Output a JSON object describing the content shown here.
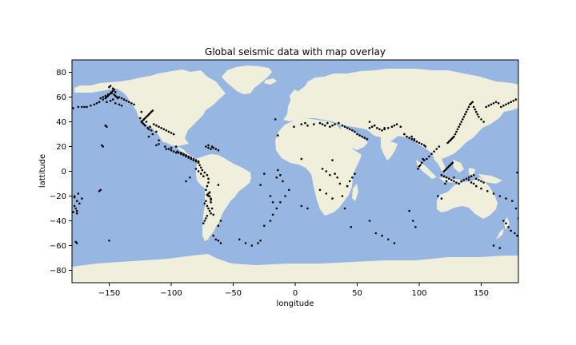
{
  "colors": {
    "ocean": "#97b6e1",
    "land": "#efefdb",
    "points": "#000000"
  },
  "chart_data": {
    "type": "scatter",
    "title": "Global seismic data with map overlay",
    "xlabel": "longitude",
    "ylabel": "lattitude",
    "xlim": [
      -180,
      180
    ],
    "ylim": [
      -90,
      90
    ],
    "xticks": [
      -150,
      -100,
      -50,
      0,
      50,
      100,
      150
    ],
    "yticks": [
      -80,
      -60,
      -40,
      -20,
      0,
      20,
      40,
      60,
      80
    ],
    "grid": false,
    "legend": "none",
    "background": "world map (land/ocean) overlay",
    "x": [
      -179,
      -175,
      -172,
      -170,
      -168,
      -165,
      -162,
      -160,
      -158,
      -155,
      -153,
      -152,
      -151,
      -150,
      -149,
      -148,
      -147,
      -146,
      -145,
      -144,
      -143,
      -142,
      -140,
      -138,
      -136,
      -134,
      -132,
      -130,
      -150,
      -149,
      -147,
      -146,
      -145,
      -148,
      -151,
      -153,
      -155,
      -157,
      -147,
      -149,
      -152,
      -145,
      -142,
      -140,
      -124,
      -123,
      -122,
      -121,
      -120,
      -119,
      -118,
      -117,
      -116,
      -115,
      -114,
      -112,
      -110,
      -108,
      -106,
      -104,
      -102,
      -100,
      -98,
      -123,
      -122,
      -121,
      -119,
      -118,
      -116,
      -117,
      -120,
      -122,
      -125,
      -124,
      -112,
      -115,
      -118,
      -110,
      -100,
      -95,
      -92,
      -90,
      -88,
      -86,
      -84,
      -82,
      -80,
      -78,
      -70,
      -68,
      -66,
      -64,
      -62,
      -72,
      -70,
      -67,
      -104,
      -102,
      -100,
      -98,
      -96,
      -94,
      -92,
      -90,
      -88,
      -86,
      -84,
      -82,
      -80,
      -78,
      -77,
      -76,
      -75,
      -73,
      -71,
      -70,
      -70,
      -71,
      -72,
      -70,
      -69,
      -68,
      -72,
      -73,
      -71,
      -70,
      -69,
      -68,
      -71,
      -72,
      -73,
      -74,
      -71,
      -69,
      -68,
      -70,
      -68,
      -67,
      -66,
      -60,
      -62,
      -80,
      -78,
      -76,
      -74,
      -85,
      -88,
      -64,
      -62,
      -60,
      -66,
      -45,
      -40,
      -35,
      -30,
      -28,
      -25,
      -20,
      -18,
      -15,
      -12,
      -8,
      -5,
      -62,
      -28,
      -25,
      -14,
      -16,
      -14,
      -105,
      -110,
      -112,
      -98,
      -100,
      -96,
      -155,
      -156,
      -157,
      -158,
      -175,
      -178,
      -172,
      -176,
      -174,
      -178,
      -177,
      -176,
      -176,
      -178,
      -179,
      -177,
      -176,
      -150,
      -152,
      -153,
      -1,
      5,
      8,
      10,
      15,
      20,
      22,
      24,
      26,
      28,
      30,
      32,
      35,
      38,
      40,
      42,
      44,
      46,
      48,
      50,
      52,
      54,
      56,
      58,
      60,
      62,
      64,
      66,
      68,
      70,
      72,
      75,
      78,
      80,
      82,
      85,
      88,
      90,
      92,
      94,
      96,
      98,
      100,
      102,
      104,
      105,
      103,
      30,
      32,
      34,
      36,
      38,
      40,
      42,
      44,
      46,
      48,
      22,
      25,
      28,
      5,
      10,
      92,
      95,
      97,
      99,
      100,
      101,
      102,
      104,
      106,
      108,
      110,
      112,
      114,
      116,
      118,
      120,
      122,
      124,
      126,
      128,
      130,
      132,
      134,
      136,
      138,
      140,
      142,
      144,
      146,
      148,
      150,
      152,
      121,
      122,
      123,
      124,
      125,
      126,
      127,
      128,
      129,
      130,
      131,
      132,
      133,
      134,
      135,
      136,
      137,
      138,
      139,
      140,
      141,
      142,
      143,
      144,
      145,
      146,
      147,
      148,
      150,
      152,
      154,
      156,
      158,
      160,
      162,
      164,
      166,
      168,
      170,
      172,
      174,
      176,
      178,
      179,
      120,
      121,
      122,
      123,
      124,
      125,
      126,
      127,
      128,
      140,
      142,
      144,
      146,
      150,
      155,
      160,
      165,
      170,
      175,
      178,
      180,
      168,
      170,
      172,
      174,
      177,
      179,
      160,
      165,
      88,
      94,
      96,
      98,
      115,
      118,
      60,
      65,
      70,
      75,
      80,
      -15,
      -12,
      -10,
      -20,
      -18,
      5,
      20,
      25,
      30,
      60,
      72,
      45
    ],
    "y": [
      51,
      52,
      52,
      52,
      52,
      53,
      54,
      55,
      56,
      58,
      59,
      60,
      61,
      62,
      63,
      64,
      65,
      62,
      61,
      60,
      59,
      60,
      59,
      58,
      57,
      56,
      55,
      54,
      68,
      69,
      67,
      66,
      64,
      63,
      62,
      61,
      60,
      59,
      58,
      57,
      56,
      55,
      54,
      53,
      40,
      41,
      42,
      43,
      44,
      45,
      46,
      47,
      48,
      49,
      38,
      37,
      36,
      35,
      34,
      33,
      32,
      31,
      30,
      39,
      38,
      37,
      35,
      34,
      33,
      36,
      40,
      42,
      43,
      48,
      32,
      30,
      28,
      25,
      17,
      16,
      15,
      14,
      13,
      12,
      11,
      10,
      9,
      8,
      19,
      18,
      19,
      18,
      17,
      20,
      21,
      20,
      18,
      18,
      17,
      16,
      15,
      15,
      14,
      13,
      12,
      11,
      10,
      9,
      8,
      7,
      5,
      3,
      1,
      -1,
      -3,
      -6,
      -9,
      -12,
      -15,
      -18,
      -20,
      -22,
      -24,
      -26,
      -28,
      -30,
      -32,
      -34,
      -36,
      -38,
      -40,
      -42,
      -19,
      -17,
      -23,
      -20,
      -25,
      -30,
      -35,
      -40,
      -44,
      2,
      0,
      -2,
      -4,
      -5,
      -8,
      -55,
      -56,
      -58,
      -52,
      -55,
      -58,
      -60,
      -58,
      -56,
      -44,
      -40,
      -35,
      -30,
      -25,
      -20,
      -15,
      -11,
      -11,
      -2,
      1,
      42,
      29,
      20,
      22,
      21,
      30,
      19,
      20,
      20,
      21,
      -15,
      -16,
      -18,
      -20,
      -22,
      -24,
      -26,
      -28,
      -30,
      -32,
      -34,
      -21,
      -33,
      -57,
      -58,
      -56,
      36,
      37,
      36,
      38,
      39,
      37,
      38,
      39,
      38,
      37,
      39,
      36,
      37,
      38,
      39,
      37,
      36,
      35,
      34,
      33,
      32,
      30,
      29,
      28,
      27,
      26,
      35,
      36,
      37,
      35,
      34,
      33,
      34,
      35,
      36,
      37,
      38,
      36,
      30,
      28,
      27,
      26,
      25,
      24,
      23,
      22,
      21,
      20,
      10,
      9,
      -2,
      -5,
      -10,
      -20,
      -30,
      -12,
      -8,
      -5,
      -2,
      2,
      0,
      -3,
      -28,
      -30,
      -32,
      -40,
      -45,
      2,
      4,
      5,
      7,
      9,
      10,
      12,
      14,
      16,
      18,
      20,
      -3,
      -4,
      -5,
      -6,
      -7,
      -8,
      -9,
      -10,
      -8,
      -7,
      -6,
      -5,
      -4,
      -3,
      -6,
      -7,
      -8,
      -9,
      -10,
      -8,
      23,
      24,
      25,
      26,
      27,
      28,
      30,
      32,
      34,
      36,
      38,
      40,
      42,
      44,
      46,
      48,
      50,
      52,
      54,
      55,
      56,
      52,
      50,
      48,
      46,
      44,
      42,
      40,
      52,
      53,
      54,
      55,
      56,
      55,
      52,
      53,
      54,
      55,
      56,
      57,
      58,
      -1,
      0,
      1,
      2,
      3,
      4,
      5,
      6,
      7,
      -5,
      -7,
      -9,
      -10,
      -12,
      -14,
      -16,
      -18,
      -20,
      -22,
      -24,
      -30,
      -38,
      -40,
      -42,
      -45,
      -48,
      -50,
      -52,
      -60,
      -62,
      30,
      28,
      26,
      24,
      -20,
      -22,
      -40,
      -50,
      -52,
      -55,
      -58,
      -5,
      -3,
      -8,
      -20,
      -25,
      10,
      -15,
      -18,
      -22,
      40,
      35,
      -45
    ]
  }
}
